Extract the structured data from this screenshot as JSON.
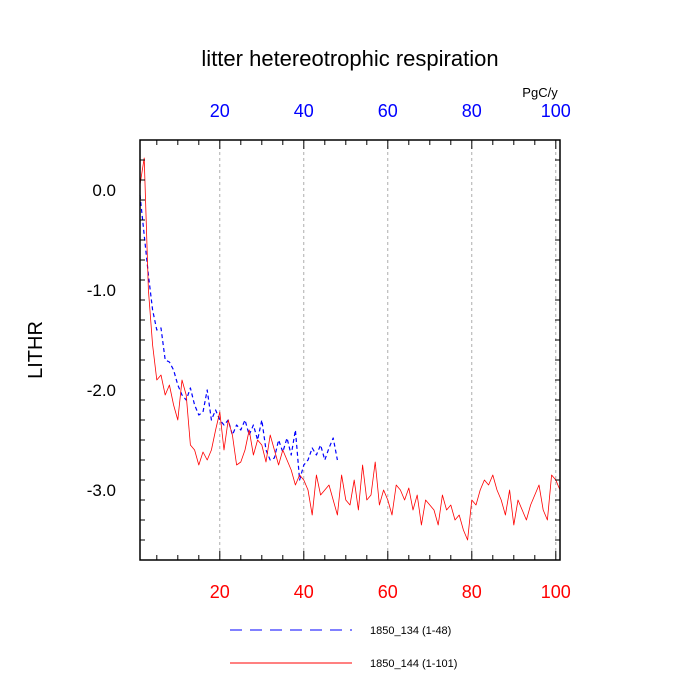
{
  "chart_data": {
    "type": "line",
    "title": "litter hetereotrophic respiration",
    "ylabel": "LITHR",
    "top_axis_units": "PgC/y",
    "xlim": [
      1,
      101
    ],
    "ylim": [
      -3.7,
      0.5
    ],
    "x_ticks": [
      20,
      40,
      60,
      80,
      100
    ],
    "x_tick_labels": [
      "20",
      "40",
      "60",
      "80",
      "100"
    ],
    "y_ticks": [
      0,
      -1,
      -2,
      -3
    ],
    "y_tick_labels": [
      "0.0",
      "-1.0",
      "-2.0",
      "-3.0"
    ],
    "grid": "vertical-dashed",
    "legend_position": "bottom",
    "colors": {
      "bottom_axis": "#ff0000",
      "top_axis": "#0000ff",
      "axes": "#000000",
      "grid": "#999999"
    },
    "series": [
      {
        "name": "1850_134 (1-48)",
        "color": "#0000ff",
        "style": "dashed",
        "x_start": 1,
        "values": [
          -0.05,
          -0.45,
          -0.85,
          -1.2,
          -1.4,
          -1.38,
          -1.7,
          -1.72,
          -1.8,
          -1.95,
          -2.05,
          -2.1,
          -1.98,
          -2.15,
          -2.25,
          -2.22,
          -2.0,
          -2.3,
          -2.2,
          -2.3,
          -2.35,
          -2.3,
          -2.45,
          -2.35,
          -2.4,
          -2.3,
          -2.45,
          -2.35,
          -2.5,
          -2.3,
          -2.6,
          -2.7,
          -2.68,
          -2.5,
          -2.62,
          -2.48,
          -2.65,
          -2.4,
          -2.9,
          -2.75,
          -2.7,
          -2.58,
          -2.65,
          -2.55,
          -2.7,
          -2.58,
          -2.48,
          -2.7
        ]
      },
      {
        "name": "1850_144 (1-101)",
        "color": "#ff0000",
        "style": "solid",
        "x_start": 1,
        "values": [
          0.05,
          0.32,
          -1.0,
          -1.55,
          -1.9,
          -1.85,
          -2.05,
          -1.95,
          -2.15,
          -2.3,
          -1.9,
          -2.05,
          -2.55,
          -2.6,
          -2.75,
          -2.62,
          -2.7,
          -2.6,
          -2.4,
          -2.22,
          -2.6,
          -2.3,
          -2.45,
          -2.75,
          -2.72,
          -2.6,
          -2.4,
          -2.65,
          -2.5,
          -2.55,
          -2.72,
          -2.45,
          -2.6,
          -2.75,
          -2.6,
          -2.7,
          -2.8,
          -2.95,
          -2.85,
          -2.9,
          -3.0,
          -3.25,
          -2.85,
          -3.05,
          -3.0,
          -2.95,
          -3.1,
          -3.25,
          -2.85,
          -3.1,
          -3.15,
          -2.9,
          -3.2,
          -2.75,
          -3.1,
          -3.05,
          -2.72,
          -3.15,
          -3.0,
          -3.1,
          -3.25,
          -2.95,
          -3.0,
          -3.1,
          -2.98,
          -3.2,
          -3.05,
          -3.35,
          -3.1,
          -3.15,
          -3.2,
          -3.35,
          -3.05,
          -3.2,
          -3.15,
          -3.3,
          -3.25,
          -3.4,
          -3.5,
          -3.1,
          -3.15,
          -3.0,
          -2.9,
          -2.95,
          -2.85,
          -3.0,
          -3.1,
          -3.25,
          -3.0,
          -3.35,
          -3.1,
          -3.2,
          -3.3,
          -3.15,
          -3.05,
          -2.95,
          -3.2,
          -3.3,
          -2.85,
          -2.9,
          -3.0
        ]
      }
    ]
  }
}
